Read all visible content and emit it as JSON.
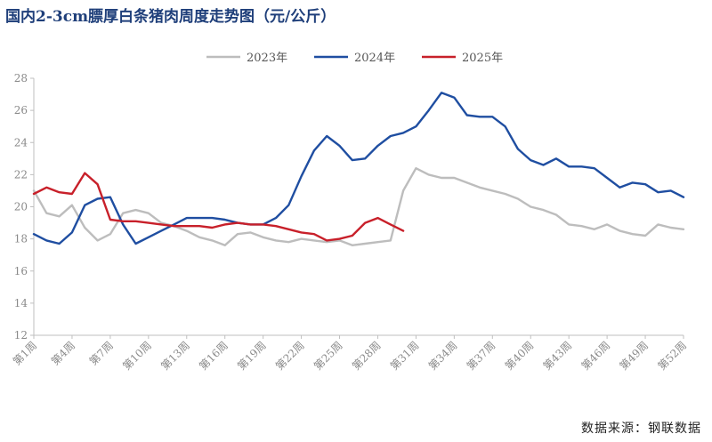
{
  "title": "国内2-3cm膘厚白条猪肉周度走势图（元/公斤）",
  "source": "数据来源：钢联数据",
  "chart_data": {
    "type": "line",
    "title": "国内2-3cm膘厚白条猪肉周度走势图（元/公斤）",
    "ylim": [
      12,
      28
    ],
    "yticks": [
      12,
      14,
      16,
      18,
      20,
      22,
      24,
      26,
      28
    ],
    "xlim": [
      1,
      52
    ],
    "xtick_labels": [
      "第1周",
      "第4周",
      "第7周",
      "第10周",
      "第13周",
      "第16周",
      "第19周",
      "第22周",
      "第25周",
      "第28周",
      "第31周",
      "第34周",
      "第37周",
      "第40周",
      "第43周",
      "第46周",
      "第49周",
      "第52周"
    ],
    "xtick_weeks": [
      1,
      4,
      7,
      10,
      13,
      16,
      19,
      22,
      25,
      28,
      31,
      34,
      37,
      40,
      43,
      46,
      49,
      52
    ],
    "grid": false,
    "legend_position": "top-center",
    "series": [
      {
        "name": "2023年",
        "color": "#bdbdbd",
        "x": [
          1,
          2,
          3,
          4,
          5,
          6,
          7,
          8,
          9,
          10,
          11,
          12,
          13,
          14,
          15,
          16,
          17,
          18,
          19,
          20,
          21,
          22,
          23,
          24,
          25,
          26,
          27,
          28,
          29,
          30,
          31,
          32,
          33,
          34,
          35,
          36,
          37,
          38,
          39,
          40,
          41,
          42,
          43,
          44,
          45,
          46,
          47,
          48,
          49,
          50,
          51,
          52
        ],
        "values": [
          21.0,
          19.6,
          19.4,
          20.1,
          18.7,
          17.9,
          18.3,
          19.6,
          19.8,
          19.6,
          19.0,
          18.8,
          18.5,
          18.1,
          17.9,
          17.6,
          18.3,
          18.4,
          18.1,
          17.9,
          17.8,
          18.0,
          17.9,
          17.8,
          17.9,
          17.6,
          17.7,
          17.8,
          17.9,
          21.0,
          22.4,
          22.0,
          21.8,
          21.8,
          21.5,
          21.2,
          21.0,
          20.8,
          20.5,
          20.0,
          19.8,
          19.5,
          18.9,
          18.8,
          18.6,
          18.9,
          18.5,
          18.3,
          18.2,
          18.9,
          18.7,
          18.6
        ]
      },
      {
        "name": "2024年",
        "color": "#1f4ea1",
        "x": [
          1,
          2,
          3,
          4,
          5,
          6,
          7,
          8,
          9,
          10,
          11,
          12,
          13,
          14,
          15,
          16,
          17,
          18,
          19,
          20,
          21,
          22,
          23,
          24,
          25,
          26,
          27,
          28,
          29,
          30,
          31,
          32,
          33,
          34,
          35,
          36,
          37,
          38,
          39,
          40,
          41,
          42,
          43,
          44,
          45,
          46,
          47,
          48,
          49,
          50,
          51,
          52
        ],
        "values": [
          18.3,
          17.9,
          17.7,
          18.4,
          20.1,
          20.5,
          20.6,
          18.9,
          17.7,
          18.1,
          18.5,
          18.9,
          19.3,
          19.3,
          19.3,
          19.2,
          19.0,
          18.9,
          18.9,
          19.3,
          20.1,
          21.9,
          23.5,
          24.4,
          23.8,
          22.9,
          23.0,
          23.8,
          24.4,
          24.6,
          25.0,
          26.0,
          27.1,
          26.8,
          25.7,
          25.6,
          25.6,
          25.0,
          23.6,
          22.9,
          22.6,
          23.0,
          22.5,
          22.5,
          22.4,
          21.8,
          21.2,
          21.5,
          21.4,
          20.9,
          21.0,
          20.6
        ]
      },
      {
        "name": "2025年",
        "color": "#c8202a",
        "x": [
          1,
          2,
          3,
          4,
          5,
          6,
          7,
          8,
          9,
          10,
          11,
          12,
          13,
          14,
          15,
          16,
          17,
          18,
          19,
          20,
          21,
          22,
          23,
          24,
          25,
          26,
          27,
          28,
          29,
          30
        ],
        "values": [
          20.8,
          21.2,
          20.9,
          20.8,
          22.1,
          21.4,
          19.2,
          19.1,
          19.1,
          19.0,
          18.9,
          18.8,
          18.8,
          18.8,
          18.7,
          18.9,
          19.0,
          18.9,
          18.9,
          18.8,
          18.6,
          18.4,
          18.3,
          17.9,
          18.0,
          18.2,
          19.0,
          19.3,
          18.9,
          18.5
        ]
      }
    ]
  }
}
